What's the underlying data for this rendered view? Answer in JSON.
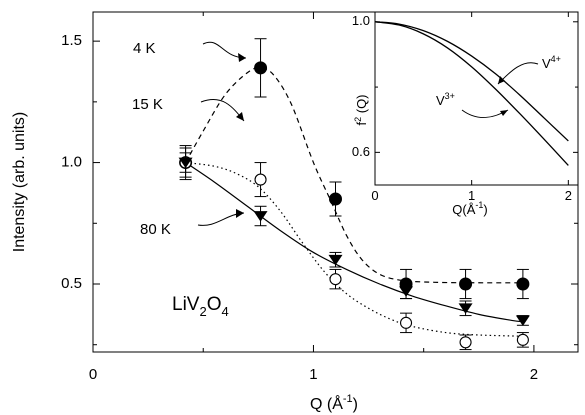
{
  "chart_data": {
    "type": "scatter",
    "xlabel_main": "Q (",
    "xlabel_unit": "Å",
    "xlabel_exp": "-1",
    "xlabel_close": ")",
    "ylabel": "Intensity (arb. units)",
    "xlim": [
      0,
      2.2
    ],
    "ylim": [
      0.22,
      1.62
    ],
    "xticks": [
      0,
      1,
      2
    ],
    "yticks": [
      0.5,
      1.0,
      1.5
    ],
    "xtick_labels": [
      "0",
      "1",
      "2"
    ],
    "ytick_labels": [
      "0.5",
      "1.0",
      "1.5"
    ],
    "compound": {
      "a": "LiV",
      "b": "2",
      "c": "O",
      "d": "4"
    },
    "series": [
      {
        "name": "4 K",
        "marker": "filled-circle",
        "curve": "dashed",
        "points": [
          {
            "x": 0.42,
            "y": 1.0,
            "err": 0.07
          },
          {
            "x": 0.76,
            "y": 1.39,
            "err": 0.12
          },
          {
            "x": 1.1,
            "y": 0.85,
            "err": 0.07
          },
          {
            "x": 1.42,
            "y": 0.5,
            "err": 0.06
          },
          {
            "x": 1.69,
            "y": 0.5,
            "err": 0.06
          },
          {
            "x": 1.95,
            "y": 0.5,
            "err": 0.06
          }
        ],
        "fit": [
          [
            0.42,
            1.0
          ],
          [
            0.5,
            1.13
          ],
          [
            0.6,
            1.28
          ],
          [
            0.7,
            1.37
          ],
          [
            0.76,
            1.39
          ],
          [
            0.82,
            1.36
          ],
          [
            0.9,
            1.24
          ],
          [
            1.0,
            1.0
          ],
          [
            1.08,
            0.84
          ],
          [
            1.15,
            0.7
          ],
          [
            1.22,
            0.6
          ],
          [
            1.3,
            0.54
          ],
          [
            1.4,
            0.515
          ],
          [
            1.55,
            0.507
          ],
          [
            1.75,
            0.505
          ],
          [
            1.95,
            0.505
          ]
        ]
      },
      {
        "name": "15 K",
        "marker": "open-circle",
        "curve": "dotted",
        "points": [
          {
            "x": 0.42,
            "y": 1.0,
            "err": 0.06
          },
          {
            "x": 0.76,
            "y": 0.93,
            "err": 0.07
          },
          {
            "x": 1.1,
            "y": 0.52,
            "err": 0.04
          },
          {
            "x": 1.42,
            "y": 0.34,
            "err": 0.04
          },
          {
            "x": 1.69,
            "y": 0.26,
            "err": 0.03
          },
          {
            "x": 1.95,
            "y": 0.27,
            "err": 0.03
          }
        ],
        "fit": [
          [
            0.42,
            1.0
          ],
          [
            0.55,
            0.985
          ],
          [
            0.65,
            0.955
          ],
          [
            0.75,
            0.9
          ],
          [
            0.85,
            0.8
          ],
          [
            0.95,
            0.67
          ],
          [
            1.05,
            0.55
          ],
          [
            1.15,
            0.46
          ],
          [
            1.25,
            0.4
          ],
          [
            1.35,
            0.355
          ],
          [
            1.45,
            0.325
          ],
          [
            1.6,
            0.3
          ],
          [
            1.75,
            0.29
          ],
          [
            1.95,
            0.285
          ]
        ]
      },
      {
        "name": "80 K",
        "marker": "filled-triangle-down",
        "curve": "solid",
        "points": [
          {
            "x": 0.42,
            "y": 1.0,
            "err": 0.04
          },
          {
            "x": 0.76,
            "y": 0.78,
            "err": 0.04
          },
          {
            "x": 1.1,
            "y": 0.6,
            "err": 0.03
          },
          {
            "x": 1.42,
            "y": 0.47,
            "err": 0.03
          },
          {
            "x": 1.69,
            "y": 0.4,
            "err": 0.03
          },
          {
            "x": 1.95,
            "y": 0.35,
            "err": 0.02
          }
        ],
        "fit": [
          [
            0.42,
            1.0
          ],
          [
            0.55,
            0.92
          ],
          [
            0.7,
            0.82
          ],
          [
            0.85,
            0.72
          ],
          [
            1.0,
            0.63
          ],
          [
            1.15,
            0.56
          ],
          [
            1.3,
            0.5
          ],
          [
            1.45,
            0.45
          ],
          [
            1.6,
            0.41
          ],
          [
            1.75,
            0.375
          ],
          [
            1.9,
            0.35
          ],
          [
            1.95,
            0.345
          ]
        ]
      }
    ],
    "inset": {
      "xlabel_main": "Q(",
      "xlabel_unit": "Å",
      "xlabel_exp": "-1",
      "xlabel_close": ")",
      "ylabel_main": "f",
      "ylabel_exp": "2",
      "ylabel_rest": " (Q)",
      "xlim": [
        0,
        2.1
      ],
      "ylim": [
        0.5,
        1.03
      ],
      "xticks": [
        0,
        1,
        2
      ],
      "yticks": [
        0.6,
        1.0
      ],
      "xtick_labels": [
        "0",
        "1",
        "2"
      ],
      "ytick_labels": [
        "0.6",
        "1.0"
      ],
      "curves": [
        {
          "ion": "V",
          "charge": "4+",
          "points": [
            [
              0,
              1.0
            ],
            [
              0.25,
              0.993
            ],
            [
              0.5,
              0.973
            ],
            [
              0.75,
              0.94
            ],
            [
              1.0,
              0.895
            ],
            [
              1.25,
              0.84
            ],
            [
              1.5,
              0.775
            ],
            [
              1.75,
              0.705
            ],
            [
              2.0,
              0.635
            ]
          ]
        },
        {
          "ion": "V",
          "charge": "3+",
          "points": [
            [
              0,
              1.0
            ],
            [
              0.25,
              0.99
            ],
            [
              0.5,
              0.963
            ],
            [
              0.75,
              0.92
            ],
            [
              1.0,
              0.862
            ],
            [
              1.25,
              0.793
            ],
            [
              1.5,
              0.718
            ],
            [
              1.75,
              0.64
            ],
            [
              2.0,
              0.56
            ]
          ]
        }
      ]
    }
  }
}
